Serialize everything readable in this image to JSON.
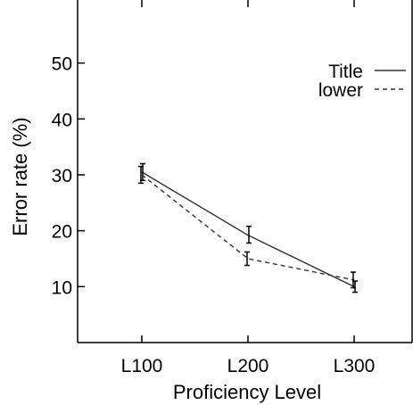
{
  "chart_data": {
    "type": "line",
    "categories": [
      "L100",
      "L200",
      "L300"
    ],
    "xlabel": "Proficiency Level",
    "ylabel": "Error rate (%)",
    "ylim": [
      0,
      60
    ],
    "yticks": [
      10,
      20,
      30,
      40,
      50
    ],
    "grid": false,
    "legend_position": "top-right",
    "series": [
      {
        "name": "Title",
        "style": "solid",
        "values": [
          30.5,
          19.2,
          10.0
        ],
        "err_low": [
          29.0,
          17.8,
          9.0
        ],
        "err_high": [
          32.0,
          20.8,
          11.0
        ]
      },
      {
        "name": "lower",
        "style": "dashed",
        "values": [
          30.0,
          15.0,
          11.2
        ],
        "err_low": [
          28.5,
          13.8,
          9.8
        ],
        "err_high": [
          31.5,
          16.2,
          12.6
        ]
      }
    ]
  }
}
